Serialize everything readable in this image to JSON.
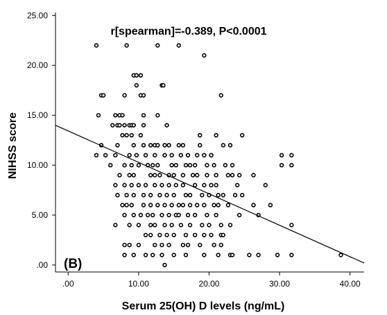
{
  "chart_data": {
    "type": "scatter",
    "xlabel": "Serum 25(OH) D levels (ng/mL)",
    "ylabel": "NIHSS score",
    "annotation": "r[spearman]=-0.389, P<0.0001",
    "panel_label": "(B)",
    "xlim": [
      -1.8,
      42.0
    ],
    "ylim": [
      -0.7,
      25.3
    ],
    "x_ticks": [
      0,
      10,
      20,
      30,
      40
    ],
    "x_tick_labels": [
      ".00",
      "10.00",
      "20.00",
      "30.00",
      "40.00"
    ],
    "y_ticks": [
      0,
      5,
      10,
      15,
      20,
      25
    ],
    "y_tick_labels": [
      ".00",
      "5.00",
      "10.00",
      "15.00",
      "20.00",
      "25.00"
    ],
    "grid": false,
    "point_color": "#000000",
    "fit_line": {
      "x": [
        -1.8,
        42.0
      ],
      "y": [
        14.0,
        0.2
      ]
    },
    "points": [
      [
        4.0,
        22
      ],
      [
        8.3,
        22
      ],
      [
        12.7,
        22
      ],
      [
        15.7,
        22
      ],
      [
        19.3,
        21
      ],
      [
        9.3,
        19
      ],
      [
        9.7,
        19
      ],
      [
        10.3,
        19
      ],
      [
        9.7,
        18
      ],
      [
        13.3,
        18
      ],
      [
        13.5,
        18
      ],
      [
        4.7,
        17
      ],
      [
        5.0,
        17
      ],
      [
        8.0,
        17
      ],
      [
        10.3,
        17
      ],
      [
        10.7,
        17
      ],
      [
        21.7,
        17
      ],
      [
        4.3,
        15
      ],
      [
        6.7,
        15
      ],
      [
        7.3,
        15
      ],
      [
        7.7,
        15
      ],
      [
        10.7,
        15
      ],
      [
        12.7,
        15
      ],
      [
        6.3,
        14
      ],
      [
        7.0,
        14
      ],
      [
        7.3,
        14
      ],
      [
        8.0,
        14
      ],
      [
        8.7,
        14
      ],
      [
        9.0,
        14
      ],
      [
        9.3,
        14
      ],
      [
        10.7,
        14
      ],
      [
        14.0,
        14
      ],
      [
        7.7,
        13
      ],
      [
        8.3,
        13
      ],
      [
        9.0,
        13
      ],
      [
        10.3,
        13
      ],
      [
        18.7,
        13
      ],
      [
        21.0,
        13
      ],
      [
        24.7,
        13
      ],
      [
        4.7,
        12
      ],
      [
        7.0,
        12
      ],
      [
        9.3,
        12
      ],
      [
        10.7,
        12
      ],
      [
        11.7,
        12
      ],
      [
        12.3,
        12
      ],
      [
        12.7,
        12
      ],
      [
        13.7,
        12
      ],
      [
        14.3,
        12
      ],
      [
        15.7,
        12
      ],
      [
        16.3,
        12
      ],
      [
        18.7,
        12
      ],
      [
        22.0,
        12
      ],
      [
        23.0,
        12
      ],
      [
        4.0,
        11
      ],
      [
        5.3,
        11
      ],
      [
        6.7,
        11
      ],
      [
        8.7,
        11
      ],
      [
        9.7,
        11
      ],
      [
        11.0,
        11
      ],
      [
        12.3,
        11
      ],
      [
        13.7,
        11
      ],
      [
        14.7,
        11
      ],
      [
        16.0,
        11
      ],
      [
        17.0,
        11
      ],
      [
        18.3,
        11
      ],
      [
        19.3,
        11
      ],
      [
        20.3,
        11
      ],
      [
        30.3,
        11
      ],
      [
        31.7,
        11
      ],
      [
        6.0,
        10
      ],
      [
        8.0,
        10
      ],
      [
        9.0,
        10
      ],
      [
        10.0,
        10
      ],
      [
        11.3,
        10
      ],
      [
        12.0,
        10
      ],
      [
        12.7,
        10
      ],
      [
        14.7,
        10
      ],
      [
        15.3,
        10
      ],
      [
        16.7,
        10
      ],
      [
        17.3,
        10
      ],
      [
        18.0,
        10
      ],
      [
        19.7,
        10
      ],
      [
        20.7,
        10
      ],
      [
        22.3,
        10
      ],
      [
        23.3,
        10
      ],
      [
        30.3,
        10
      ],
      [
        31.7,
        10
      ],
      [
        7.3,
        9
      ],
      [
        8.7,
        9
      ],
      [
        9.3,
        9
      ],
      [
        11.7,
        9
      ],
      [
        12.3,
        9
      ],
      [
        13.0,
        9
      ],
      [
        14.3,
        9
      ],
      [
        15.0,
        9
      ],
      [
        16.3,
        9
      ],
      [
        17.7,
        9
      ],
      [
        18.3,
        9
      ],
      [
        19.7,
        9
      ],
      [
        21.0,
        9
      ],
      [
        22.7,
        9
      ],
      [
        23.3,
        9
      ],
      [
        24.3,
        9
      ],
      [
        26.3,
        9
      ],
      [
        6.7,
        8
      ],
      [
        8.0,
        8
      ],
      [
        9.0,
        8
      ],
      [
        10.0,
        8
      ],
      [
        11.0,
        8
      ],
      [
        12.3,
        8
      ],
      [
        13.3,
        8
      ],
      [
        14.3,
        8
      ],
      [
        15.3,
        8
      ],
      [
        16.3,
        8
      ],
      [
        18.0,
        8
      ],
      [
        19.3,
        8
      ],
      [
        20.3,
        8
      ],
      [
        21.0,
        8
      ],
      [
        24.0,
        8
      ],
      [
        28.0,
        8
      ],
      [
        7.0,
        7
      ],
      [
        8.3,
        7
      ],
      [
        9.3,
        7
      ],
      [
        10.7,
        7
      ],
      [
        11.7,
        7
      ],
      [
        13.0,
        7
      ],
      [
        14.0,
        7
      ],
      [
        15.0,
        7
      ],
      [
        16.7,
        7
      ],
      [
        17.3,
        7
      ],
      [
        19.0,
        7
      ],
      [
        20.0,
        7
      ],
      [
        21.3,
        7
      ],
      [
        22.0,
        7
      ],
      [
        23.7,
        7
      ],
      [
        24.7,
        7
      ],
      [
        7.7,
        6
      ],
      [
        8.3,
        6
      ],
      [
        9.0,
        6
      ],
      [
        10.7,
        6
      ],
      [
        11.7,
        6
      ],
      [
        12.7,
        6
      ],
      [
        13.7,
        6
      ],
      [
        14.7,
        6
      ],
      [
        15.7,
        6
      ],
      [
        16.3,
        6
      ],
      [
        17.3,
        6
      ],
      [
        18.3,
        6
      ],
      [
        19.3,
        6
      ],
      [
        20.7,
        6
      ],
      [
        21.3,
        6
      ],
      [
        22.7,
        6
      ],
      [
        26.3,
        6
      ],
      [
        28.7,
        6
      ],
      [
        8.0,
        5
      ],
      [
        9.3,
        5
      ],
      [
        10.3,
        5
      ],
      [
        11.3,
        5
      ],
      [
        12.0,
        5
      ],
      [
        13.3,
        5
      ],
      [
        14.3,
        5
      ],
      [
        15.3,
        5
      ],
      [
        15.7,
        5
      ],
      [
        17.0,
        5
      ],
      [
        18.0,
        5
      ],
      [
        19.7,
        5
      ],
      [
        21.0,
        5
      ],
      [
        24.3,
        5
      ],
      [
        27.0,
        5
      ],
      [
        6.7,
        4
      ],
      [
        8.7,
        4
      ],
      [
        10.0,
        4
      ],
      [
        11.7,
        4
      ],
      [
        12.3,
        4
      ],
      [
        13.7,
        4
      ],
      [
        14.7,
        4
      ],
      [
        16.0,
        4
      ],
      [
        17.3,
        4
      ],
      [
        19.0,
        4
      ],
      [
        20.0,
        4
      ],
      [
        21.7,
        4
      ],
      [
        23.0,
        4
      ],
      [
        31.7,
        4
      ],
      [
        11.0,
        3
      ],
      [
        11.7,
        3
      ],
      [
        13.0,
        3
      ],
      [
        14.0,
        3
      ],
      [
        15.0,
        3
      ],
      [
        16.7,
        3
      ],
      [
        18.0,
        3
      ],
      [
        19.3,
        3
      ],
      [
        20.3,
        3
      ],
      [
        21.7,
        3
      ],
      [
        22.0,
        3
      ],
      [
        8.0,
        2
      ],
      [
        8.7,
        2
      ],
      [
        10.0,
        2
      ],
      [
        12.3,
        2
      ],
      [
        13.3,
        2
      ],
      [
        14.3,
        2
      ],
      [
        16.3,
        2
      ],
      [
        17.0,
        2
      ],
      [
        18.7,
        2
      ],
      [
        20.7,
        2
      ],
      [
        21.7,
        2
      ],
      [
        8.0,
        1
      ],
      [
        9.3,
        1
      ],
      [
        11.0,
        1
      ],
      [
        12.0,
        1
      ],
      [
        13.3,
        1
      ],
      [
        15.0,
        1
      ],
      [
        16.7,
        1
      ],
      [
        19.3,
        1
      ],
      [
        21.3,
        1
      ],
      [
        23.0,
        1
      ],
      [
        23.3,
        1
      ],
      [
        25.7,
        1
      ],
      [
        27.0,
        1
      ],
      [
        29.7,
        1
      ],
      [
        31.7,
        1
      ],
      [
        38.7,
        1
      ],
      [
        13.7,
        0
      ]
    ]
  }
}
